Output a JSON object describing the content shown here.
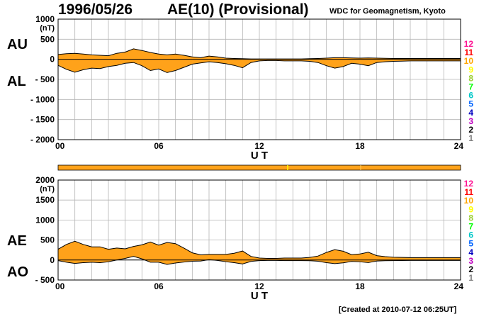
{
  "header": {
    "date": "1996/05/26",
    "title": "AE(10) (Provisional)",
    "source": "WDC for Geomagnetism, Kyoto"
  },
  "footer": {
    "created": "[Created at 2010-07-12 06:25UT]"
  },
  "panels": {
    "upper": {
      "label_top": "AU",
      "label_bottom": "AL"
    },
    "lower": {
      "label_top": "AE",
      "label_bottom": "AO"
    }
  },
  "colors": {
    "fill": "#FFA21A",
    "outline": "#000000",
    "grid": "#B4B4B4",
    "station_bar": "#FFA21A",
    "station_numbers": [
      "#FF1493",
      "#FF0000",
      "#FFA500",
      "#FFFF00",
      "#9ACD32",
      "#00FF00",
      "#00C8C8",
      "#0064FF",
      "#0000C0",
      "#C000C0",
      "#000000",
      "#808080",
      "#C0C0C0"
    ]
  },
  "station_counts": [
    "12",
    "11",
    "10",
    "9",
    "8",
    "7",
    "6",
    "5",
    "4",
    "3",
    "2",
    "1"
  ],
  "chart_data": [
    {
      "type": "area",
      "name_top": "AU",
      "name_bottom": "AL",
      "unit": "(nT)",
      "xlabel": "U T",
      "x_ticks": [
        0,
        6,
        12,
        18,
        24
      ],
      "x_tick_labels": [
        "00",
        "06",
        "12",
        "18",
        "24"
      ],
      "xlim": [
        0,
        24
      ],
      "ylim": [
        -2000,
        1000
      ],
      "y_ticks": [
        1000,
        500,
        0,
        -500,
        -1000,
        -1500,
        -2000
      ],
      "y_tick_labels": [
        "1000",
        "500",
        "0",
        "- 500",
        "- 1000",
        "- 1500",
        "- 2000"
      ],
      "x": [
        0,
        0.5,
        1,
        1.5,
        2,
        2.5,
        3,
        3.5,
        4,
        4.5,
        5,
        5.5,
        6,
        6.5,
        7,
        7.5,
        8,
        8.5,
        9,
        9.5,
        10,
        10.5,
        11,
        11.5,
        12,
        12.5,
        13,
        13.5,
        14,
        14.5,
        15,
        15.5,
        16,
        16.5,
        17,
        17.5,
        18,
        18.5,
        19,
        19.5,
        20,
        20.5,
        21,
        21.5,
        22,
        22.5,
        23,
        23.5,
        24
      ],
      "series": [
        {
          "name": "AU",
          "values": [
            120,
            140,
            150,
            130,
            110,
            100,
            90,
            150,
            180,
            260,
            220,
            170,
            130,
            110,
            130,
            100,
            60,
            40,
            80,
            60,
            30,
            20,
            15,
            10,
            10,
            10,
            10,
            10,
            10,
            10,
            15,
            20,
            30,
            40,
            40,
            35,
            30,
            35,
            30,
            25,
            20,
            20,
            20,
            20,
            20,
            20,
            20,
            20,
            20
          ]
        },
        {
          "name": "AL",
          "values": [
            -150,
            -250,
            -320,
            -260,
            -220,
            -230,
            -180,
            -150,
            -100,
            -80,
            -160,
            -280,
            -240,
            -330,
            -280,
            -200,
            -120,
            -90,
            -60,
            -80,
            -110,
            -150,
            -210,
            -80,
            -40,
            -30,
            -30,
            -40,
            -40,
            -40,
            -50,
            -80,
            -160,
            -220,
            -180,
            -100,
            -120,
            -160,
            -80,
            -60,
            -50,
            -45,
            -40,
            -40,
            -40,
            -40,
            -40,
            -40,
            -40
          ]
        }
      ]
    },
    {
      "type": "area",
      "name_top": "AE",
      "name_bottom": "AO",
      "unit": "(nT)",
      "xlabel": "U T",
      "x_ticks": [
        0,
        6,
        12,
        18,
        24
      ],
      "x_tick_labels": [
        "00",
        "06",
        "12",
        "18",
        "24"
      ],
      "xlim": [
        0,
        24
      ],
      "ylim": [
        -500,
        2000
      ],
      "y_ticks": [
        2000,
        1500,
        1000,
        500,
        0,
        -500
      ],
      "y_tick_labels": [
        "2000",
        "1500",
        "1000",
        "500",
        "0",
        "- 500"
      ],
      "x": [
        0,
        0.5,
        1,
        1.5,
        2,
        2.5,
        3,
        3.5,
        4,
        4.5,
        5,
        5.5,
        6,
        6.5,
        7,
        7.5,
        8,
        8.5,
        9,
        9.5,
        10,
        10.5,
        11,
        11.5,
        12,
        12.5,
        13,
        13.5,
        14,
        14.5,
        15,
        15.5,
        16,
        16.5,
        17,
        17.5,
        18,
        18.5,
        19,
        19.5,
        20,
        20.5,
        21,
        21.5,
        22,
        22.5,
        23,
        23.5,
        24
      ],
      "series": [
        {
          "name": "AE",
          "values": [
            270,
            390,
            470,
            390,
            330,
            330,
            270,
            300,
            280,
            340,
            380,
            450,
            370,
            440,
            410,
            300,
            180,
            130,
            140,
            140,
            140,
            170,
            225,
            90,
            50,
            40,
            40,
            50,
            50,
            50,
            65,
            100,
            190,
            260,
            220,
            135,
            150,
            195,
            110,
            85,
            70,
            65,
            60,
            60,
            60,
            60,
            60,
            60,
            60
          ]
        },
        {
          "name": "AO",
          "values": [
            -15,
            -55,
            -85,
            -65,
            -55,
            -65,
            -45,
            0,
            40,
            90,
            30,
            -55,
            -55,
            -110,
            -75,
            -50,
            -30,
            -25,
            10,
            -10,
            -40,
            -65,
            -100,
            -35,
            -15,
            -10,
            -10,
            -15,
            -15,
            -15,
            -18,
            -30,
            -65,
            -90,
            -70,
            -33,
            -45,
            -63,
            -25,
            -18,
            -15,
            -13,
            -10,
            -10,
            -10,
            -10,
            -10,
            -10,
            -10
          ]
        }
      ]
    }
  ]
}
